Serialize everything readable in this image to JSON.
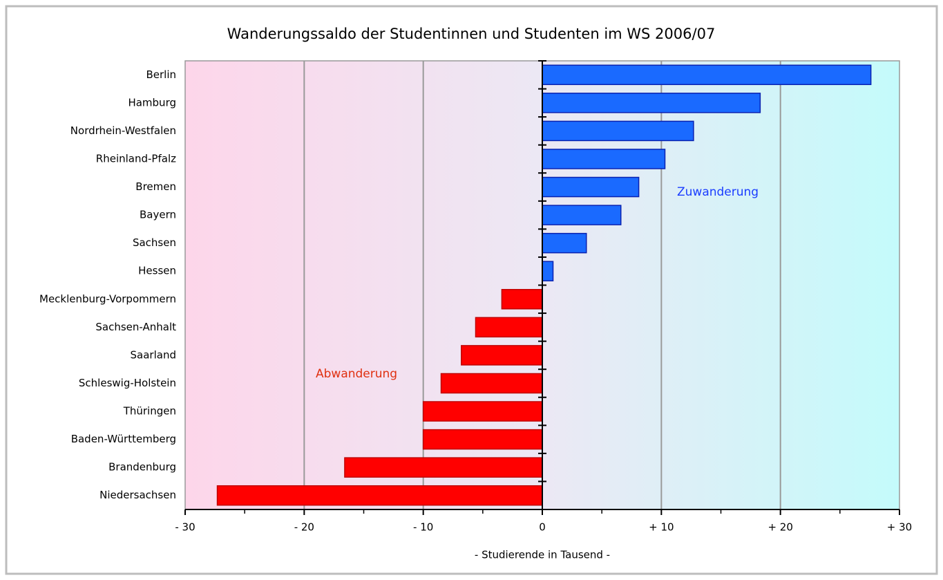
{
  "chart_data": {
    "type": "hbar",
    "title": "Wanderungssaldo der Studentinnen und Studenten im WS 2006/07",
    "x_label": "- Studierende in Tausend -",
    "categories": [
      "Berlin",
      "Hamburg",
      "Nordrhein-Westfalen",
      "Rheinland-Pfalz",
      "Bremen",
      "Bayern",
      "Sachsen",
      "Hessen",
      "Mecklenburg-Vorpommern",
      "Sachsen-Anhalt",
      "Saarland",
      "Schleswig-Holstein",
      "Thüringen",
      "Baden-Württemberg",
      "Brandenburg",
      "Niedersachsen"
    ],
    "values": [
      27.6,
      18.3,
      12.7,
      10.3,
      8.1,
      6.6,
      3.7,
      0.9,
      -3.4,
      -5.6,
      -6.8,
      -8.5,
      -10.0,
      -10.0,
      -16.6,
      -27.3
    ],
    "positive_color": "#1a6aff",
    "negative_color": "#ff0000",
    "xlim": [
      -30,
      30
    ],
    "xticks": [
      {
        "value": -30,
        "label": "- 30"
      },
      {
        "value": -20,
        "label": "- 20"
      },
      {
        "value": -10,
        "label": "- 10"
      },
      0,
      {
        "value": 10,
        "label": "+ 10"
      },
      {
        "value": 20,
        "label": "+ 20"
      },
      {
        "value": 30,
        "label": "+ 30"
      }
    ],
    "grid": true,
    "annotations": [
      {
        "text": "Zuwanderung",
        "color": "#1a3cff"
      },
      {
        "text": "Abwanderung",
        "color": "#e03010"
      }
    ]
  }
}
